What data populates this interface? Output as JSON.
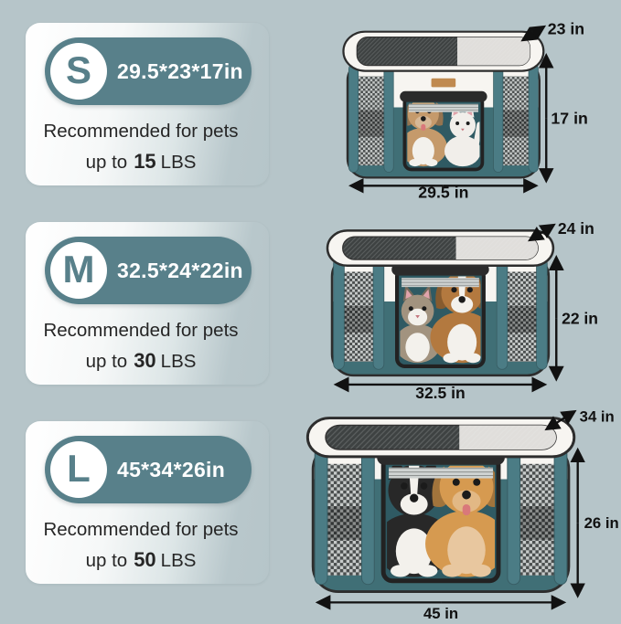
{
  "page": {
    "background_color": "#b6c5c9"
  },
  "colors": {
    "pill_teal": "#58808a",
    "badge_bg": "#ffffff",
    "badge_text": "#58808a",
    "pen_fabric": "#406f76",
    "pen_post": "#4b7c85",
    "pen_band": "#f7f5f1",
    "pen_interior": "#2f5a63",
    "pen_outline": "#2d2d2d",
    "door_frame": "#222222",
    "label_tan": "#c08a50",
    "arrow_color": "#111111",
    "text_color": "#262626"
  },
  "sizes": [
    {
      "badge": "S",
      "dimensions": "29.5*23*17in",
      "recommendation": {
        "line1": "Recommended for pets",
        "prefix": "up to",
        "weight": "15",
        "unit": "LBS"
      },
      "dims": {
        "depth": "23 in",
        "height": "17 in",
        "width": "29.5 in"
      },
      "pets": [
        {
          "type": "dog",
          "name": "small-brown-dog",
          "color": "#c59a6b"
        },
        {
          "type": "cat",
          "name": "white-cat",
          "color": "#f1eeea"
        }
      ]
    },
    {
      "badge": "M",
      "dimensions": "32.5*24*22in",
      "recommendation": {
        "line1": "Recommended for pets",
        "prefix": "up to",
        "weight": "30",
        "unit": "LBS"
      },
      "dims": {
        "depth": "24 in",
        "height": "22 in",
        "width": "32.5 in"
      },
      "pets": [
        {
          "type": "cat",
          "name": "tabby-cat",
          "color": "#a2937f"
        },
        {
          "type": "dog",
          "name": "sable-collie",
          "color": "#b3793f"
        }
      ]
    },
    {
      "badge": "L",
      "dimensions": "45*34*26in",
      "recommendation": {
        "line1": "Recommended for pets",
        "prefix": "up to",
        "weight": "50",
        "unit": "LBS"
      },
      "dims": {
        "depth": "34 in",
        "height": "26 in",
        "width": "45 in"
      },
      "pets": [
        {
          "type": "dog",
          "name": "border-collie",
          "color": "#282828"
        },
        {
          "type": "dog",
          "name": "golden-retriever",
          "color": "#d69a50"
        }
      ]
    }
  ]
}
